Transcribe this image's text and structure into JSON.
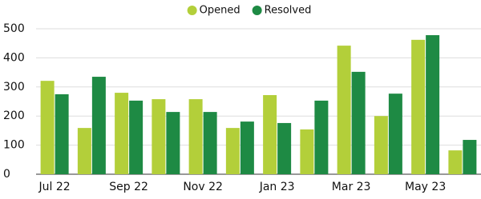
{
  "chart_data": {
    "type": "bar",
    "categories": [
      "Jul 22",
      null,
      "Sep 22",
      null,
      "Nov 22",
      null,
      "Jan 23",
      null,
      "Mar 23",
      null,
      "May 23",
      null
    ],
    "series": [
      {
        "name": "Opened",
        "color": "#b3cf3a",
        "values": [
          321,
          159,
          280,
          258,
          258,
          159,
          272,
          154,
          442,
          200,
          462,
          82
        ]
      },
      {
        "name": "Resolved",
        "color": "#1e8a44",
        "values": [
          275,
          335,
          253,
          214,
          214,
          181,
          176,
          253,
          352,
          277,
          478,
          118
        ]
      }
    ],
    "ylim": [
      0,
      500
    ],
    "yticks": [
      0,
      100,
      200,
      300,
      400,
      500
    ],
    "grid": true,
    "legend": "top"
  }
}
